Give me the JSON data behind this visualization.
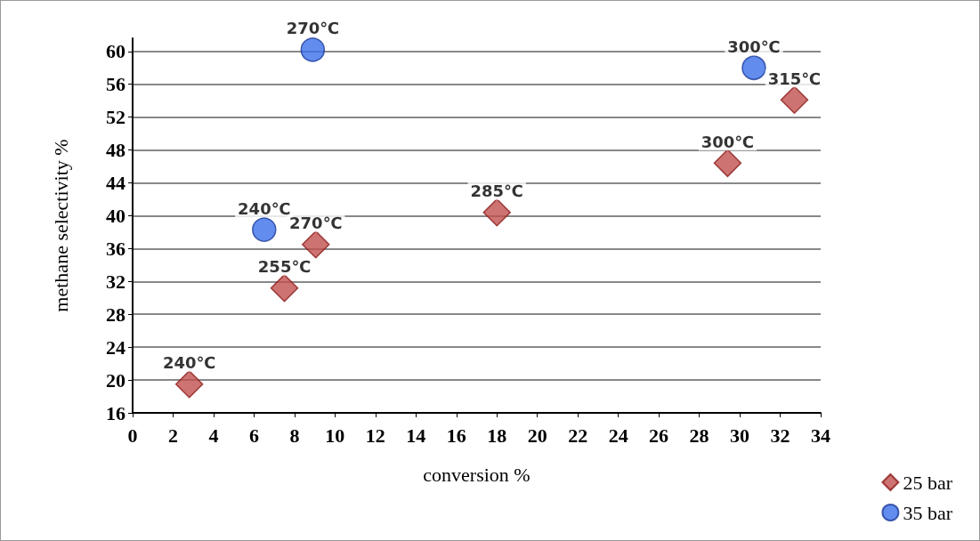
{
  "chart_data": {
    "type": "scatter",
    "xlabel": "conversion %",
    "ylabel": "methane selectivity %",
    "xlim": [
      0,
      34
    ],
    "xticks": [
      0,
      2,
      4,
      6,
      8,
      10,
      12,
      14,
      16,
      18,
      20,
      22,
      24,
      26,
      28,
      30,
      32,
      34
    ],
    "ylim": [
      16,
      61.6
    ],
    "yticks": [
      16,
      20,
      24,
      28,
      32,
      36,
      40,
      44,
      48,
      52,
      56,
      60
    ],
    "grid": "y",
    "legend": "bottom right",
    "series": [
      {
        "name": "25 bar",
        "color": "#c0504d",
        "marker": "diamond",
        "x": [
          2.8,
          7.5,
          9.05,
          18,
          29.4,
          32.7
        ],
        "values": [
          19.5,
          31.2,
          36.5,
          40.4,
          46.4,
          54.1
        ]
      },
      {
        "name": "35 bar",
        "color": "#3b6fe8",
        "marker": "circle",
        "x": [
          6.5,
          8.9,
          30.7
        ],
        "values": [
          38.3,
          60.2,
          58
        ]
      }
    ],
    "annotations": [
      {
        "text": "240℃",
        "x": 2.8,
        "y": 19.5
      },
      {
        "text": "255℃",
        "x": 7.5,
        "y": 31.2
      },
      {
        "text": "270℃",
        "x": 9.05,
        "y": 36.5
      },
      {
        "text": "285℃",
        "x": 18,
        "y": 40.4
      },
      {
        "text": "300℃",
        "x": 29.4,
        "y": 46.4
      },
      {
        "text": "315℃",
        "x": 32.7,
        "y": 54.1
      },
      {
        "text": "240℃",
        "x": 6.5,
        "y": 38.3
      },
      {
        "text": "270℃",
        "x": 8.9,
        "y": 60.2
      },
      {
        "text": "300℃",
        "x": 30.7,
        "y": 58
      }
    ]
  }
}
